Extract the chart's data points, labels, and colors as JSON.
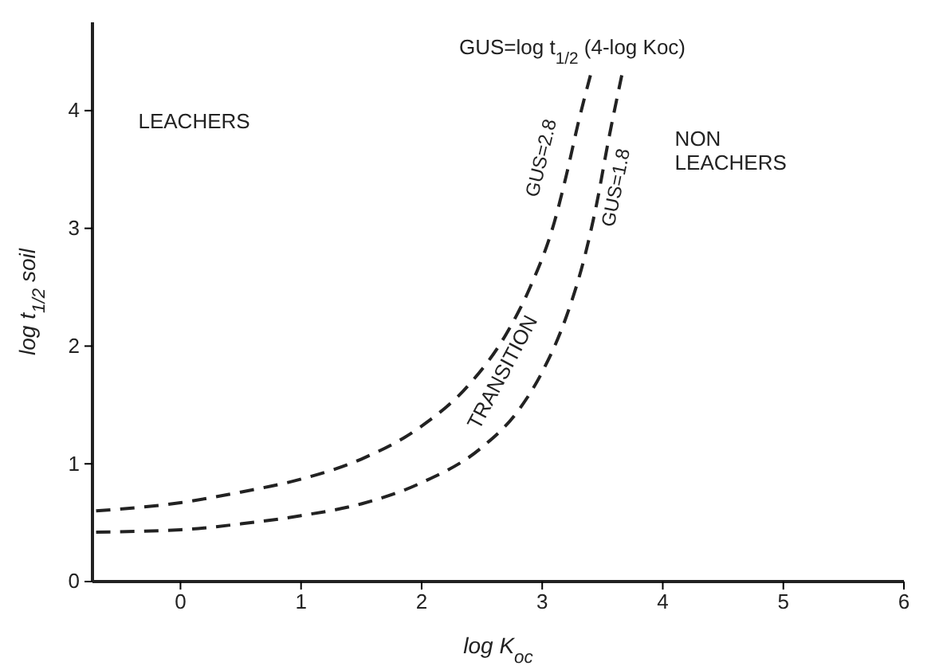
{
  "chart_data": {
    "type": "line",
    "xlabel": "log K$_{oc}$",
    "ylabel": "log t$_{1/2}$ soil",
    "xlim": [
      -0.73,
      6
    ],
    "xticks": [
      0,
      1,
      2,
      3,
      4,
      5,
      6
    ],
    "ylim": [
      0,
      4.75
    ],
    "yticks": [
      0,
      1,
      2,
      3,
      4
    ],
    "grid": false,
    "legend": false,
    "marker": "none",
    "line_style": "dashed",
    "annotations": [
      "GUS=log t$_{1/2}$ (4-log Koc)",
      "LEACHERS",
      "NON\nLEACHERS",
      "TRANSITION"
    ],
    "series": [
      {
        "name": "GUS=2.8",
        "color": "#222222",
        "x": [
          -0.7,
          0,
          0.5,
          1,
          1.5,
          2,
          2.4,
          2.7,
          2.9,
          3.1,
          3.2,
          3.3,
          3.4
        ],
        "values": [
          0.6,
          0.67,
          0.76,
          0.87,
          1.04,
          1.32,
          1.68,
          2.1,
          2.5,
          3.05,
          3.45,
          3.9,
          4.3
        ]
      },
      {
        "name": "GUS=1.8",
        "color": "#222222",
        "x": [
          -0.7,
          0,
          0.5,
          1,
          1.5,
          2,
          2.5,
          2.8,
          3.0,
          3.2,
          3.35,
          3.45,
          3.55,
          3.66
        ],
        "values": [
          0.42,
          0.44,
          0.49,
          0.56,
          0.66,
          0.84,
          1.14,
          1.45,
          1.78,
          2.25,
          2.75,
          3.2,
          3.75,
          4.3
        ]
      }
    ]
  }
}
